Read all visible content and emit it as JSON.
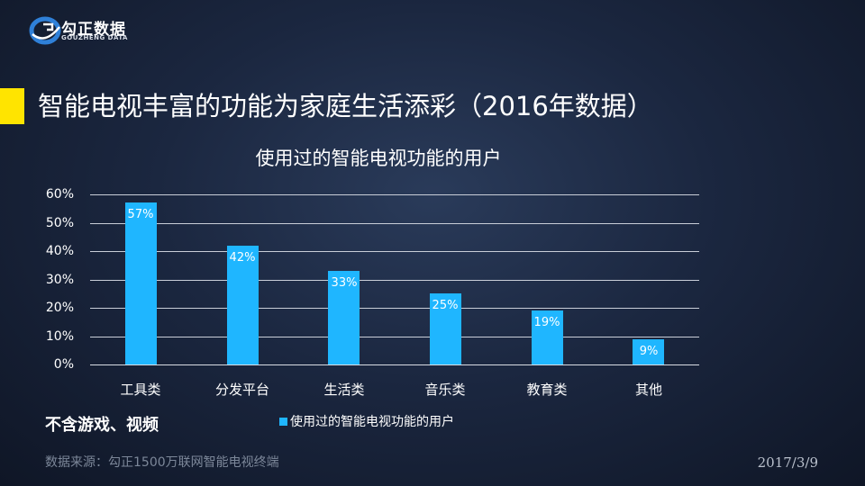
{
  "brand": {
    "name": "勾正数据",
    "subtitle": "GOUZHENG DATA"
  },
  "page_title": "智能电视丰富的功能为家庭生活添彩（2016年数据）",
  "note": "不含游戏、视频",
  "source": "数据来源：勾正1500万联网智能电视终端",
  "date": "2017/3/9",
  "colors": {
    "bar": "#1fb6ff",
    "title_accent": "#ffe400"
  },
  "chart_data": {
    "type": "bar",
    "title": "使用过的智能电视功能的用户",
    "categories": [
      "工具类",
      "分发平台",
      "生活类",
      "音乐类",
      "教育类",
      "其他"
    ],
    "series": [
      {
        "name": "使用过的智能电视功能的用户",
        "values": [
          57,
          42,
          33,
          25,
          19,
          9
        ]
      }
    ],
    "data_labels": [
      "57%",
      "42%",
      "33%",
      "25%",
      "19%",
      "9%"
    ],
    "y_ticks": [
      "0%",
      "10%",
      "20%",
      "30%",
      "40%",
      "50%",
      "60%"
    ],
    "ylim": [
      0,
      60
    ],
    "xlabel": "",
    "ylabel": "",
    "grid": true,
    "legend_position": "bottom"
  }
}
